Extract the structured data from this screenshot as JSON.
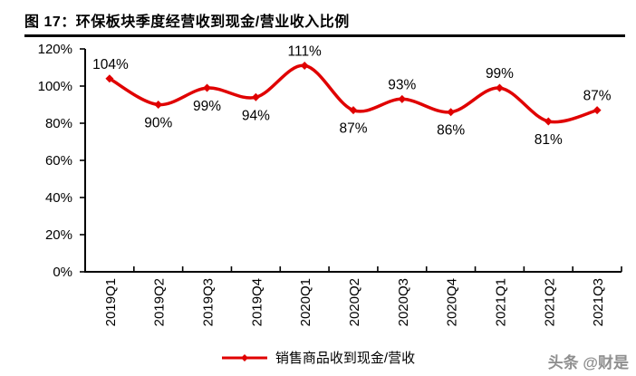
{
  "header": {
    "title": "图 17：环保板块季度经营收到现金/营业收入比例"
  },
  "legend": {
    "label": "销售商品收到现金/营收"
  },
  "watermark": {
    "text": "头条 @财是"
  },
  "colors": {
    "line": "#e00000",
    "axis": "#000000",
    "text": "#000000",
    "watermark": "#8f8f8f",
    "background": "#ffffff"
  },
  "chart_data": {
    "type": "line",
    "title": "环保板块季度经营收到现金/营业收入比例",
    "categories": [
      "2019Q1",
      "2019Q2",
      "2019Q3",
      "2019Q4",
      "2020Q1",
      "2020Q2",
      "2020Q3",
      "2020Q4",
      "2021Q1",
      "2021Q2",
      "2021Q3"
    ],
    "series": [
      {
        "name": "销售商品收到现金/营收",
        "values": [
          104,
          90,
          99,
          94,
          111,
          87,
          93,
          86,
          99,
          81,
          87
        ],
        "color": "#e00000"
      }
    ],
    "value_suffix": "%",
    "xlabel": "",
    "ylabel": "",
    "ylim": [
      0,
      120
    ],
    "ytick_step": 20,
    "ytick_labels": [
      "0%",
      "20%",
      "40%",
      "60%",
      "80%",
      "100%",
      "120%"
    ],
    "grid": false,
    "smooth": true,
    "markers": "diamond",
    "legend_position": "bottom",
    "data_label_positions": [
      "above",
      "below",
      "below",
      "below",
      "above",
      "below",
      "above",
      "below",
      "above",
      "below",
      "above"
    ]
  }
}
